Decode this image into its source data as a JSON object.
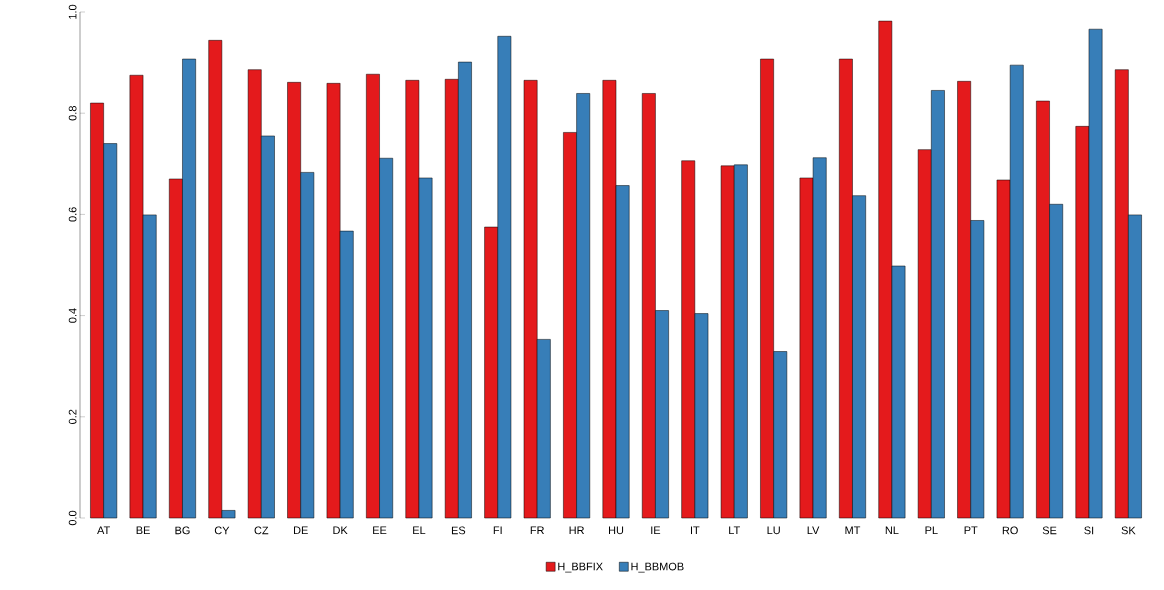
{
  "chart_data": {
    "type": "bar",
    "categories": [
      "AT",
      "BE",
      "BG",
      "CY",
      "CZ",
      "DE",
      "DK",
      "EE",
      "EL",
      "ES",
      "FI",
      "FR",
      "HR",
      "HU",
      "IE",
      "IT",
      "LT",
      "LU",
      "LV",
      "MT",
      "NL",
      "PL",
      "PT",
      "RO",
      "SE",
      "SI",
      "SK"
    ],
    "series": [
      {
        "name": "H_BBFIX",
        "color": "#e41a1c",
        "values": [
          0.82,
          0.875,
          0.67,
          0.944,
          0.886,
          0.861,
          0.859,
          0.877,
          0.865,
          0.867,
          0.575,
          0.865,
          0.762,
          0.865,
          0.839,
          0.706,
          0.696,
          0.907,
          0.672,
          0.907,
          0.982,
          0.728,
          0.863,
          0.668,
          0.824,
          0.774,
          0.886
        ]
      },
      {
        "name": "H_BBMOB",
        "color": "#377eb8",
        "values": [
          0.74,
          0.599,
          0.907,
          0.015,
          0.755,
          0.683,
          0.567,
          0.711,
          0.672,
          0.901,
          0.952,
          0.353,
          0.839,
          0.657,
          0.41,
          0.404,
          0.698,
          0.329,
          0.712,
          0.637,
          0.498,
          0.845,
          0.588,
          0.895,
          0.62,
          0.966,
          0.599
        ]
      }
    ],
    "ylim": [
      0,
      1
    ],
    "yticks": [
      {
        "value": 0,
        "label": "0.0"
      },
      {
        "value": 0.2,
        "label": "0.2"
      },
      {
        "value": 0.4,
        "label": "0.4"
      },
      {
        "value": 0.6,
        "label": "0.6"
      },
      {
        "value": 0.8,
        "label": "0.8"
      },
      {
        "value": 1,
        "label": "1.0"
      }
    ],
    "legend": "bottom"
  }
}
